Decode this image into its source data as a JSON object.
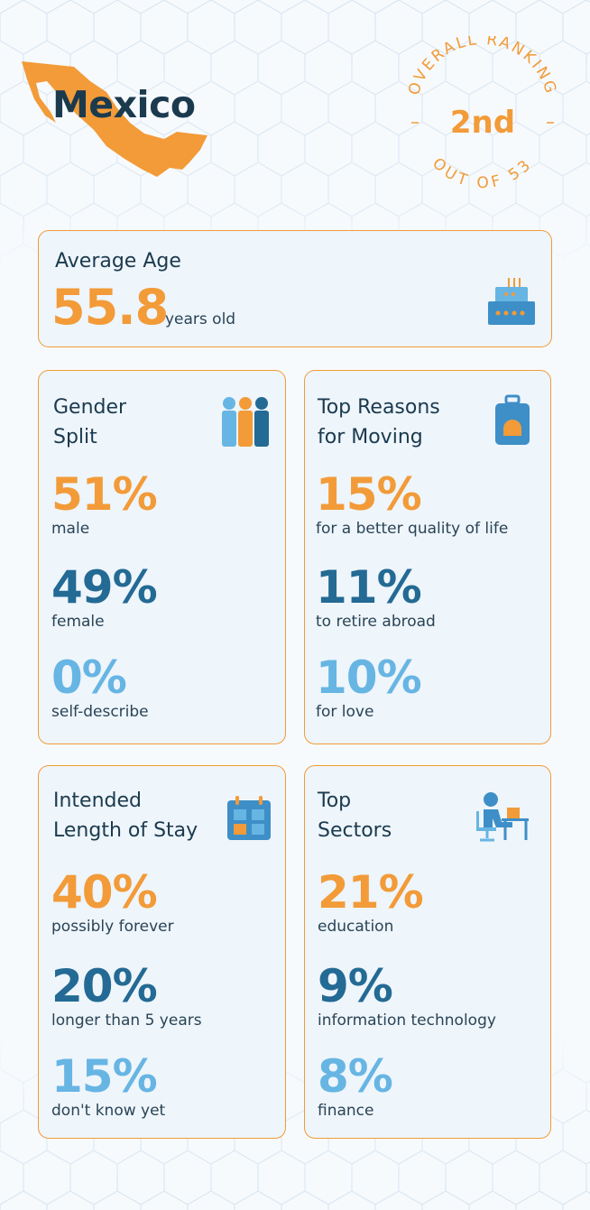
{
  "header": {
    "country": "Mexico",
    "ranking_top": "OVERALL RANKING",
    "ranking_rank": "2nd",
    "ranking_bottom": "OUT OF 53"
  },
  "colors": {
    "orange": "#f29b38",
    "dark_blue": "#236a94",
    "light_blue": "#67b5e3",
    "navy": "#1b3a4e"
  },
  "average_age": {
    "title": "Average Age",
    "value": "55.8",
    "unit": "years old",
    "icon": "birthday-cake-icon"
  },
  "gender": {
    "title": "Gender\nSplit",
    "icon": "people-icon",
    "stats": [
      {
        "value": "51%",
        "label": "male"
      },
      {
        "value": "49%",
        "label": "female"
      },
      {
        "value": "0%",
        "label": "self-describe"
      }
    ]
  },
  "reasons": {
    "title": "Top Reasons\nfor Moving",
    "icon": "suitcase-icon",
    "stats": [
      {
        "value": "15%",
        "label": "for a better quality of life"
      },
      {
        "value": "11%",
        "label": "to retire abroad"
      },
      {
        "value": "10%",
        "label": "for love"
      }
    ]
  },
  "stay": {
    "title": "Intended\nLength of Stay",
    "icon": "calendar-icon",
    "stats": [
      {
        "value": "40%",
        "label": "possibly forever"
      },
      {
        "value": "20%",
        "label": "longer than 5 years"
      },
      {
        "value": "15%",
        "label": "don't know yet"
      }
    ]
  },
  "sectors": {
    "title": "Top\nSectors",
    "icon": "person-at-desk-icon",
    "stats": [
      {
        "value": "21%",
        "label": "education"
      },
      {
        "value": "9%",
        "label": "information technology"
      },
      {
        "value": "8%",
        "label": "finance"
      }
    ]
  }
}
